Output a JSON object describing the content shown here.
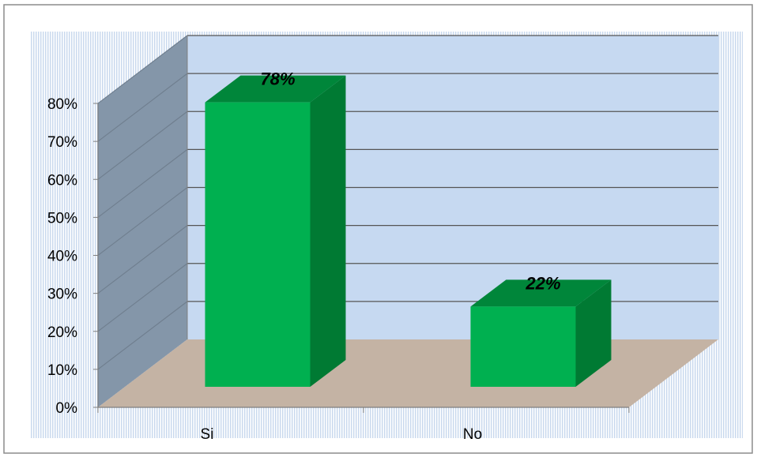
{
  "chart_data": {
    "type": "bar",
    "categories": [
      "Si",
      "No"
    ],
    "values": [
      78,
      22
    ],
    "data_labels": [
      "78%",
      "22%"
    ],
    "ylim": [
      0,
      80
    ],
    "yticks": [
      "0%",
      "10%",
      "20%",
      "30%",
      "40%",
      "50%",
      "60%",
      "70%",
      "80%"
    ],
    "grid": true,
    "style": "3d-column",
    "colors": {
      "bar_front": "#00b050",
      "bar_side": "#007a33",
      "bar_top": "#00863a",
      "back_wall": "#c6d9f1",
      "side_wall": "#8496a9",
      "floor": "#c4b3a4",
      "plot_area_hatch": "#c6d9f1"
    }
  }
}
